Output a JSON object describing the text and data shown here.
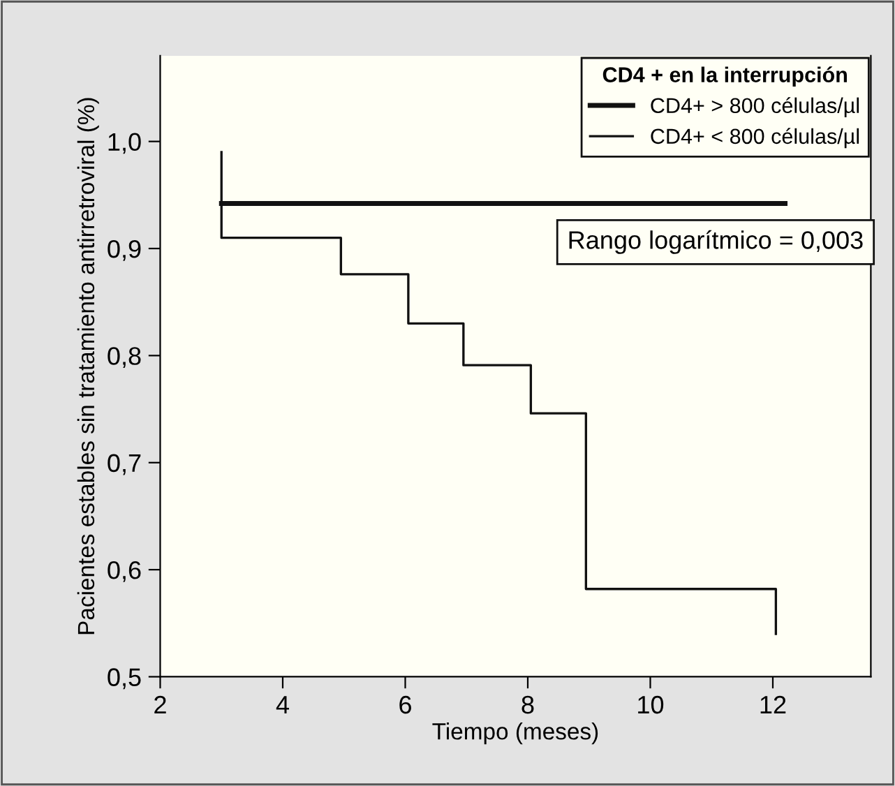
{
  "chart_data": {
    "type": "step",
    "xlabel": "Tiempo (meses)",
    "ylabel": "Pacientes estables sin tratamiento antirretroviral (%)",
    "legend_title": "CD4 + en la interrupción",
    "series": [
      {
        "name": "CD4+ > 800 células/µl",
        "color": "#111111",
        "x": [
          3,
          12.2
        ],
        "values": [
          0.942,
          0.942
        ]
      },
      {
        "name": "CD4+ < 800 células/µl",
        "color": "#111111",
        "x": [
          3,
          3,
          4.95,
          6.05,
          6.95,
          8.05,
          8.95,
          12.05,
          12.05
        ],
        "values": [
          0.99,
          0.91,
          0.876,
          0.83,
          0.791,
          0.746,
          0.582,
          0.582,
          0.54
        ]
      }
    ],
    "xlim": [
      2,
      13.6
    ],
    "ylim": [
      0.5,
      1.08
    ],
    "xticks": [
      2,
      4,
      6,
      8,
      10,
      12
    ],
    "yticks": [
      {
        "value": 0.5,
        "label": "0,5"
      },
      {
        "value": 0.6,
        "label": "0,6"
      },
      {
        "value": 0.7,
        "label": "0,7"
      },
      {
        "value": 0.8,
        "label": "0,8"
      },
      {
        "value": 0.9,
        "label": "0,9"
      },
      {
        "value": 1.0,
        "label": "1,0"
      }
    ],
    "annotations": [
      "Rango logarítmico = 0,003"
    ],
    "legend": "top right",
    "grid": false
  }
}
